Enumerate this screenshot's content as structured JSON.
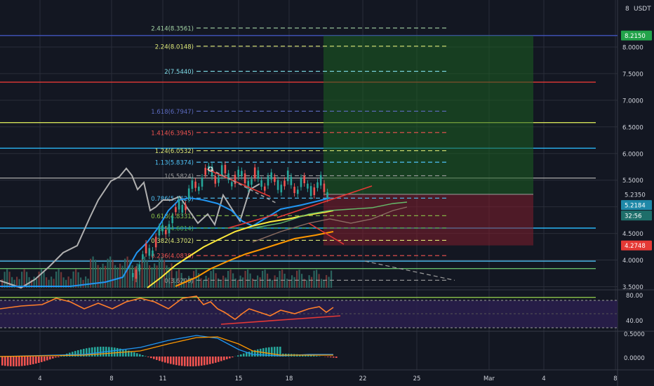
{
  "currency": "USDT",
  "colors": {
    "bg": "#131722",
    "grid": "#2a2e39",
    "up": "#26a69a",
    "down": "#ef5350",
    "text": "#d1d4dc",
    "target_green": "#4caf50",
    "stop_red": "#e53935"
  },
  "price_scale": {
    "ticks": [
      "8.0000",
      "7.5000",
      "7.0000",
      "6.5000",
      "6.0000",
      "5.5000",
      "5.0000",
      "4.5000",
      "4.0000",
      "3.5000"
    ],
    "badges": [
      {
        "label": "8.2150",
        "bg": "#22a34a",
        "color": "#ffffff",
        "price": 8.215
      },
      {
        "label": "5.2350",
        "bg": "#131722",
        "color": "#d1d4dc",
        "price": 5.235
      },
      {
        "label": "5.2184",
        "bg": "#1e88a8",
        "color": "#ffffff",
        "price": 5.2184
      },
      {
        "label": "32:56",
        "bg": "#1e6e6a",
        "color": "#ffffff",
        "price": 4.98
      },
      {
        "label": "4.2748",
        "bg": "#e53935",
        "color": "#ffffff",
        "price": 4.2748
      }
    ]
  },
  "rsi_scale": {
    "ticks": [
      "80.00",
      "40.00"
    ]
  },
  "macd_scale": {
    "ticks": [
      "0.5000",
      "0.0000"
    ]
  },
  "time_axis": {
    "labels": [
      "4",
      "8",
      "11",
      "15",
      "18",
      "22",
      "25",
      "Mar",
      "4",
      "8"
    ]
  },
  "fib_levels": [
    {
      "label": "2.414(8.3561)",
      "price": 8.3561,
      "color": "#a5d6a7"
    },
    {
      "label": "2.24(8.0148)",
      "price": 8.0148,
      "color": "#dce775"
    },
    {
      "label": "2(7.5440)",
      "price": 7.544,
      "color": "#80deea"
    },
    {
      "label": "1.618(6.7947)",
      "price": 6.7947,
      "color": "#5c6bc0"
    },
    {
      "label": "1.414(6.3945)",
      "price": 6.3945,
      "color": "#ef5350"
    },
    {
      "label": "1.24(6.0532)",
      "price": 6.0532,
      "color": "#dce775"
    },
    {
      "label": "1.13(5.8374)",
      "price": 5.8374,
      "color": "#4fc3f7"
    },
    {
      "label": "1(5.5824)",
      "price": 5.5824,
      "color": "#9e9e9e"
    },
    {
      "label": "0.786(5.1626)",
      "price": 5.1626,
      "color": "#4fc3f7"
    },
    {
      "label": "0.618(4.8331)",
      "price": 4.8331,
      "color": "#8bc34a"
    },
    {
      "label": "0.5(4.6014)",
      "price": 4.6014,
      "color": "#4caf50"
    },
    {
      "label": "0.382(4.3702)",
      "price": 4.3702,
      "color": "#dce775"
    },
    {
      "label": "0.236(4.0838)",
      "price": 4.0838,
      "color": "#ef5350"
    },
    {
      "label": "0(3.6209)",
      "price": 3.6209,
      "color": "#9e9e9e"
    }
  ],
  "horizontal_lines": [
    {
      "price": 8.215,
      "color": "#3f51b5"
    },
    {
      "price": 7.34,
      "color": "#e53935"
    },
    {
      "price": 6.58,
      "color": "#d4e157"
    },
    {
      "price": 6.1,
      "color": "#29b6f6"
    },
    {
      "price": 5.54,
      "color": "#9e9e9e"
    },
    {
      "price": 4.6,
      "color": "#29b6f6"
    },
    {
      "price": 3.98,
      "color": "#4fc3f7"
    },
    {
      "price": 3.84,
      "color": "#66bb6a"
    },
    {
      "price": 3.3,
      "color": "#8bc34a"
    }
  ],
  "position": {
    "entry": 5.235,
    "target": 8.215,
    "stop": 4.2748
  }
}
